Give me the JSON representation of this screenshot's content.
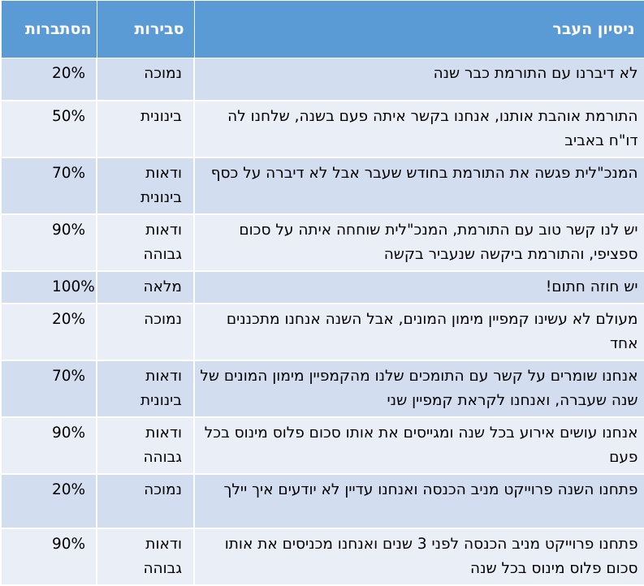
{
  "headers": {
    "experience": "ניסיון העבר",
    "probability": "סבירות",
    "likelihood": "הסתברות"
  },
  "rows": [
    {
      "experience": "לא דיברנו עם התורמת כבר שנה",
      "probability": "נמוכה",
      "likelihood": "20%"
    },
    {
      "experience": "התורמת אוהבת אותנו, אנחנו בקשר איתה פעם בשנה, שלחנו לה דו\"ח באביב",
      "probability": "בינונית",
      "likelihood": "50%"
    },
    {
      "experience": "המנכ\"לית פגשה את התורמת בחודש שעבר אבל לא דיברה על כסף",
      "probability": "ודאות בינונית",
      "likelihood": "70%"
    },
    {
      "experience": "יש לנו קשר טוב עם התורמת, המנכ\"לית שוחחה איתה על סכום ספציפי, והתורמת ביקשה שנעביר בקשה",
      "probability": "ודאות גבוהה",
      "likelihood": "90%"
    },
    {
      "experience": "יש חוזה חתום!",
      "probability": "מלאה",
      "likelihood": "100%"
    },
    {
      "experience": "מעולם לא עשינו קמפיין מימון המונים, אבל השנה אנחנו מתכננים אחד",
      "probability": "נמוכה",
      "likelihood": "20%"
    },
    {
      "experience": "אנחנו שומרים על קשר עם התומכים שלנו מהקמפיין מימון המונים של שנה שעברה, ואנחנו לקראת קמפיין שני",
      "probability": "ודאות בינונית",
      "likelihood": "70%"
    },
    {
      "experience": "אנחנו עושים אירוע בכל שנה ומגייסים את אותו סכום פלוס מינוס בכל פעם",
      "probability": "ודאות גבוהה",
      "likelihood": "90%"
    },
    {
      "experience": "פתחנו השנה פרוייקט מניב הכנסה ואנחנו עדיין לא יודעים איך יילך",
      "probability": "נמוכה",
      "likelihood": "20%"
    },
    {
      "experience": "פתחנו פרוייקט מניב הכנסה לפני 3 שנים ואנחנו מכניסים את אותו סכום פלוס מינוס בכל שנה",
      "probability": "ודאות גבוהה",
      "likelihood": "90%"
    }
  ]
}
